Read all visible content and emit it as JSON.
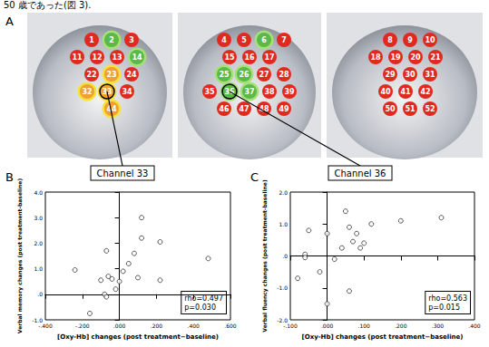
{
  "header": {
    "text": "50 歳であった(図 3)."
  },
  "panel_a": {
    "label": "A",
    "default_color": "#e02a20",
    "color_groups": [
      {
        "color": "#5cb848",
        "channels": [
          2,
          6,
          14,
          25,
          26,
          36,
          37
        ]
      },
      {
        "color": "#f0a030",
        "channels": [
          23,
          32,
          33,
          44
        ]
      }
    ],
    "views": [
      {
        "channels": [
          1,
          2,
          3,
          11,
          12,
          13,
          14,
          22,
          23,
          24,
          32,
          33,
          34,
          44
        ]
      },
      {
        "channels": [
          4,
          5,
          6,
          7,
          15,
          16,
          17,
          25,
          26,
          27,
          28,
          35,
          36,
          37,
          38,
          39,
          46,
          47,
          48,
          49
        ]
      },
      {
        "channels": [
          8,
          9,
          10,
          18,
          19,
          20,
          21,
          29,
          30,
          31,
          40,
          41,
          42,
          50,
          51,
          52
        ]
      }
    ],
    "links": [
      {
        "channel": 33,
        "label": "Channel 33"
      },
      {
        "channel": 36,
        "label": "Channel 36"
      }
    ]
  },
  "chart_data": [
    {
      "type": "scatter",
      "panel": "B",
      "marker": "circle-open",
      "x_label": "[Oxy-Hb] changes (post treatment−baseline)",
      "y_label": "Verbal memory changes (post treatment-baseline)",
      "annotation": [
        "rho=0.497",
        "p=0.030"
      ],
      "xlim": [
        -0.4,
        0.6
      ],
      "xticks": [
        {
          "value": -0.4,
          "label": "-.400"
        },
        {
          "value": -0.2,
          "label": "-.200"
        },
        {
          "value": 0,
          "label": ".000"
        },
        {
          "value": 0.2,
          "label": ".200"
        },
        {
          "value": 0.4,
          "label": ".400"
        },
        {
          "value": 0.6,
          "label": ".600"
        }
      ],
      "ylim": [
        -1.0,
        4.0
      ],
      "yticks": [
        {
          "value": -1,
          "label": "-1.0"
        },
        {
          "value": 0,
          "label": ".0"
        },
        {
          "value": 1,
          "label": "1.0"
        },
        {
          "value": 2,
          "label": "2.0"
        },
        {
          "value": 3,
          "label": "3.0"
        },
        {
          "value": 4,
          "label": "4.0"
        }
      ],
      "x": [
        -0.24,
        -0.16,
        -0.1,
        -0.08,
        -0.07,
        -0.07,
        -0.06,
        -0.04,
        -0.02,
        0.0,
        0.02,
        0.05,
        0.08,
        0.1,
        0.12,
        0.12,
        0.22,
        0.22,
        0.48
      ],
      "values": [
        0.95,
        -0.75,
        0.55,
        0.0,
        -0.1,
        1.7,
        0.7,
        0.6,
        0.2,
        0.5,
        0.9,
        1.2,
        1.6,
        0.65,
        2.2,
        3.0,
        2.05,
        0.55,
        1.4
      ]
    },
    {
      "type": "scatter",
      "panel": "C",
      "marker": "circle-open",
      "x_label": "[Oxy-Hb] changes (post treatment−baseline)",
      "y_label": "Verbal fluency changes (post treatment-baseline)",
      "annotation": [
        "rho=0.563",
        "p=0.015"
      ],
      "xlim": [
        -0.1,
        0.4
      ],
      "xticks": [
        {
          "value": -0.1,
          "label": "-.100"
        },
        {
          "value": 0,
          "label": ".000"
        },
        {
          "value": 0.1,
          "label": ".100"
        },
        {
          "value": 0.2,
          "label": ".200"
        },
        {
          "value": 0.3,
          "label": ".300"
        },
        {
          "value": 0.4,
          "label": ".400"
        }
      ],
      "ylim": [
        -2.0,
        2.0
      ],
      "yticks": [
        {
          "value": -2,
          "label": "-2.0"
        },
        {
          "value": -1,
          "label": "-1.0"
        },
        {
          "value": 0,
          "label": ".0"
        },
        {
          "value": 1,
          "label": "1.0"
        },
        {
          "value": 2,
          "label": "2.0"
        }
      ],
      "x": [
        -0.08,
        -0.06,
        -0.06,
        -0.05,
        -0.02,
        0.0,
        0.0,
        0.02,
        0.04,
        0.05,
        0.06,
        0.06,
        0.07,
        0.08,
        0.09,
        0.1,
        0.12,
        0.2,
        0.31
      ],
      "values": [
        -0.7,
        0.05,
        -0.05,
        0.8,
        -0.5,
        0.7,
        -1.5,
        -0.1,
        0.25,
        1.4,
        -1.1,
        0.9,
        0.45,
        0.7,
        0.25,
        0.4,
        1.0,
        1.1,
        1.2
      ]
    }
  ]
}
